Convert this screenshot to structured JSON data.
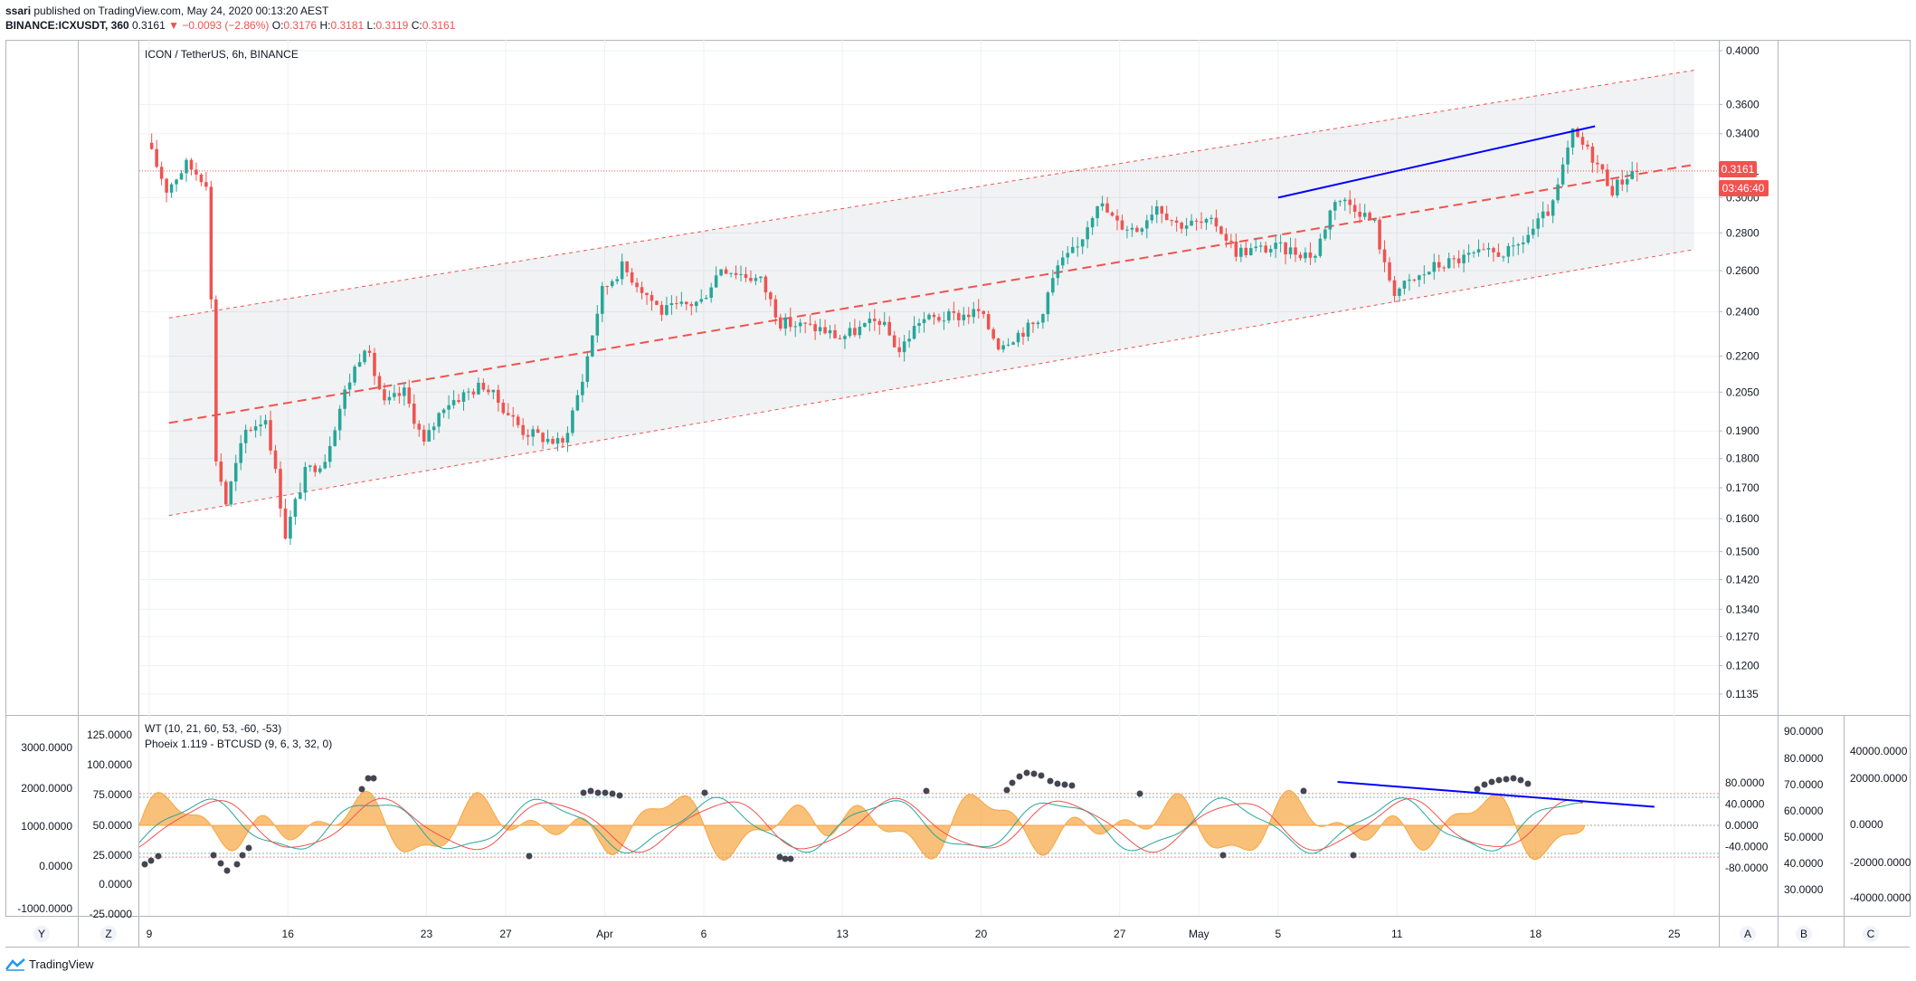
{
  "header": {
    "author": "ssari",
    "published_text": "published on TradingView.com, May 24, 2020 00:13:20 AEST",
    "symbol": "BINANCE:ICXUSDT, 360",
    "last": "0.3161",
    "change": "−0.0093 (−2.86%)",
    "o_label": "O:",
    "o": "0.3176",
    "h_label": "H:",
    "h": "0.3181",
    "l_label": "L:",
    "l": "0.3119",
    "c_label": "C:",
    "c": "0.3161"
  },
  "footer": {
    "logo_text": "TradingView"
  },
  "main_pane": {
    "title": "ICON / TetherUS, 6h, BINANCE"
  },
  "osc_pane": {
    "title1": "WT (10, 21, 60, 53, -60, -53)",
    "title2": "Phoeix 1.119 - BTCUSD (9, 6, 3, 32, 0)"
  },
  "price_badges": {
    "last": "0.3161",
    "countdown": "03:46:40"
  },
  "scale_letters": {
    "y": "Y",
    "z": "Z",
    "a": "A",
    "b": "B",
    "c": "C"
  },
  "colors": {
    "up": "#26a69a",
    "down": "#ef5350",
    "channel": "#ef5350",
    "trend": "#0000ff",
    "wave": "#f7a540",
    "grid": "#eef1f5"
  },
  "chart_data": [
    {
      "type": "candlestick",
      "title": "ICON / TetherUS, 6h, BINANCE",
      "y_scale": "log",
      "y_ticks": [
        "0.4000",
        "0.3600",
        "0.3400",
        "0.3161",
        "0.3000",
        "0.2800",
        "0.2600",
        "0.2400",
        "0.2200",
        "0.2050",
        "0.1900",
        "0.1800",
        "0.1700",
        "0.1600",
        "0.1500",
        "0.1420",
        "0.1340",
        "0.1270",
        "0.1200",
        "0.1135"
      ],
      "x_ticks": [
        "9",
        "16",
        "23",
        "27",
        "Apr",
        "6",
        "13",
        "20",
        "27",
        "May",
        "5",
        "11",
        "18",
        "25"
      ],
      "ylim": [
        0.1135,
        0.4
      ],
      "price_path": [
        {
          "x": "2020-03-09",
          "y": 0.334
        },
        {
          "x": "2020-03-10",
          "y": 0.305
        },
        {
          "x": "2020-03-11",
          "y": 0.32
        },
        {
          "x": "2020-03-12",
          "y": 0.31
        },
        {
          "x": "2020-03-12T12",
          "y": 0.18
        },
        {
          "x": "2020-03-13",
          "y": 0.165
        },
        {
          "x": "2020-03-14",
          "y": 0.19
        },
        {
          "x": "2020-03-15",
          "y": 0.195
        },
        {
          "x": "2020-03-16",
          "y": 0.155
        },
        {
          "x": "2020-03-17",
          "y": 0.175
        },
        {
          "x": "2020-03-18",
          "y": 0.18
        },
        {
          "x": "2020-03-19",
          "y": 0.205
        },
        {
          "x": "2020-03-20",
          "y": 0.225
        },
        {
          "x": "2020-03-21",
          "y": 0.2
        },
        {
          "x": "2020-03-22",
          "y": 0.205
        },
        {
          "x": "2020-03-23",
          "y": 0.185
        },
        {
          "x": "2020-03-24",
          "y": 0.2
        },
        {
          "x": "2020-03-26",
          "y": 0.208
        },
        {
          "x": "2020-03-28",
          "y": 0.19
        },
        {
          "x": "2020-03-30",
          "y": 0.185
        },
        {
          "x": "2020-03-31",
          "y": 0.21
        },
        {
          "x": "2020-04-01",
          "y": 0.25
        },
        {
          "x": "2020-04-02",
          "y": 0.262
        },
        {
          "x": "2020-04-04",
          "y": 0.24
        },
        {
          "x": "2020-04-06",
          "y": 0.245
        },
        {
          "x": "2020-04-07",
          "y": 0.262
        },
        {
          "x": "2020-04-09",
          "y": 0.255
        },
        {
          "x": "2020-04-10",
          "y": 0.235
        },
        {
          "x": "2020-04-12",
          "y": 0.232
        },
        {
          "x": "2020-04-13",
          "y": 0.228
        },
        {
          "x": "2020-04-15",
          "y": 0.236
        },
        {
          "x": "2020-04-16",
          "y": 0.222
        },
        {
          "x": "2020-04-17",
          "y": 0.236
        },
        {
          "x": "2020-04-19",
          "y": 0.238
        },
        {
          "x": "2020-04-20",
          "y": 0.24
        },
        {
          "x": "2020-04-21",
          "y": 0.225
        },
        {
          "x": "2020-04-23",
          "y": 0.235
        },
        {
          "x": "2020-04-24",
          "y": 0.262
        },
        {
          "x": "2020-04-25",
          "y": 0.272
        },
        {
          "x": "2020-04-26",
          "y": 0.298
        },
        {
          "x": "2020-04-27",
          "y": 0.285
        },
        {
          "x": "2020-04-28",
          "y": 0.282
        },
        {
          "x": "2020-04-29",
          "y": 0.296
        },
        {
          "x": "2020-04-30",
          "y": 0.285
        },
        {
          "x": "2020-05-02",
          "y": 0.285
        },
        {
          "x": "2020-05-03",
          "y": 0.27
        },
        {
          "x": "2020-05-05",
          "y": 0.272
        },
        {
          "x": "2020-05-07",
          "y": 0.268
        },
        {
          "x": "2020-05-08",
          "y": 0.3
        },
        {
          "x": "2020-05-09",
          "y": 0.295
        },
        {
          "x": "2020-05-10",
          "y": 0.285
        },
        {
          "x": "2020-05-10T12",
          "y": 0.262
        },
        {
          "x": "2020-05-11",
          "y": 0.25
        },
        {
          "x": "2020-05-12",
          "y": 0.255
        },
        {
          "x": "2020-05-13",
          "y": 0.262
        },
        {
          "x": "2020-05-15",
          "y": 0.268
        },
        {
          "x": "2020-05-17",
          "y": 0.27
        },
        {
          "x": "2020-05-18",
          "y": 0.282
        },
        {
          "x": "2020-05-19",
          "y": 0.295
        },
        {
          "x": "2020-05-20",
          "y": 0.34
        },
        {
          "x": "2020-05-21",
          "y": 0.325
        },
        {
          "x": "2020-05-22",
          "y": 0.305
        },
        {
          "x": "2020-05-23",
          "y": 0.316
        }
      ],
      "channel": {
        "upper": [
          {
            "x": "2020-03-10",
            "y": 0.237
          },
          {
            "x": "2020-05-26",
            "y": 0.385
          }
        ],
        "mid": [
          {
            "x": "2020-03-10",
            "y": 0.193
          },
          {
            "x": "2020-05-26",
            "y": 0.32
          }
        ],
        "lower": [
          {
            "x": "2020-03-10",
            "y": 0.161
          },
          {
            "x": "2020-05-26",
            "y": 0.271
          }
        ]
      },
      "trendline": [
        {
          "x": "2020-05-05",
          "y": 0.3
        },
        {
          "x": "2020-05-21",
          "y": 0.345
        }
      ],
      "last_price": 0.3161,
      "price_labels": [
        "0.3161",
        "03:46:40"
      ]
    },
    {
      "type": "area",
      "title": "WT (10, 21, 60, 53, -60, -53) / Phoeix 1.119 - BTCUSD (9, 6, 3, 32, 0)",
      "left_axis1_ticks": [
        "3000.0000",
        "2000.0000",
        "1000.0000",
        "0.0000",
        "-1000.0000"
      ],
      "left_axis2_ticks": [
        "125.0000",
        "100.0000",
        "75.0000",
        "50.0000",
        "25.0000",
        "0.0000",
        "-25.0000"
      ],
      "right_axis1_ticks": [
        "80.0000",
        "40.0000",
        "0.0000",
        "-40.0000",
        "-80.0000"
      ],
      "right_axis2_ticks": [
        "90.0000",
        "80.0000",
        "70.0000",
        "60.0000",
        "50.0000",
        "40.0000",
        "30.0000"
      ],
      "right_axis3_ticks": [
        "40000.0000",
        "20000.0000",
        "0.0000",
        "-20000.0000",
        "-40000.0000"
      ],
      "levels": [
        53,
        60,
        -53,
        -60
      ],
      "trendline": [
        {
          "x": "2020-05-08",
          "y": 82
        },
        {
          "x": "2020-05-24",
          "y": 35
        }
      ]
    }
  ]
}
